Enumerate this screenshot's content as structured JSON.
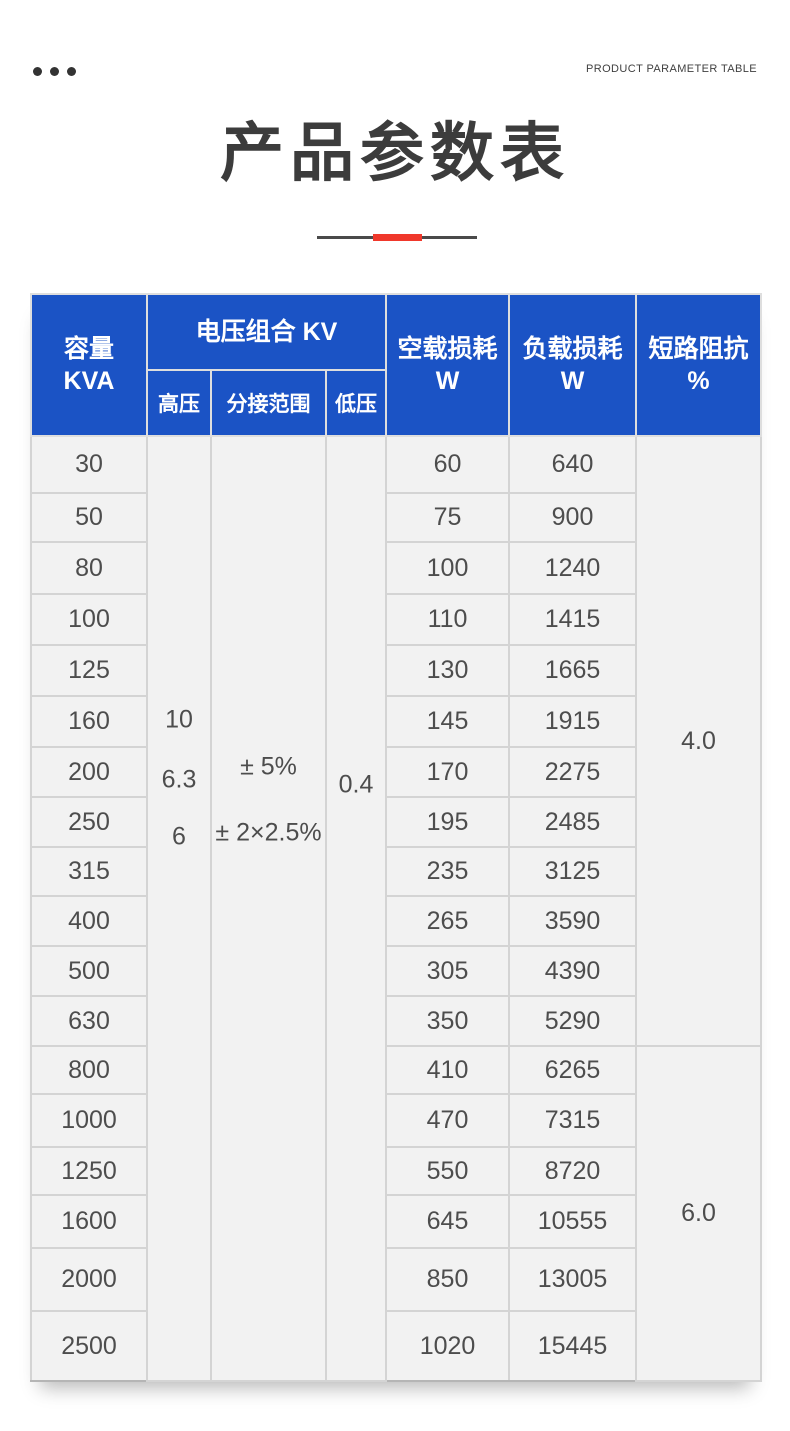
{
  "page": {
    "eyebrow": "PRODUCT PARAMETER TABLE",
    "title": "产品参数表"
  },
  "colors": {
    "header_blue": "#1b53c5",
    "accent_red": "#f0382b",
    "cell_bg": "#f2f2f2"
  },
  "table": {
    "header": {
      "capacity_title": "容量",
      "capacity_unit": "KVA",
      "voltage_group": "电压组合 KV",
      "high_voltage": "高压",
      "tap_range": "分接范围",
      "low_voltage": "低压",
      "no_load_loss": "空载损耗",
      "no_load_loss_unit": "W",
      "load_loss": "负载损耗",
      "load_loss_unit": "W",
      "impedance": "短路阻抗",
      "impedance_unit": "%"
    },
    "merged": {
      "high_voltage_values": [
        "10",
        "6.3",
        "6"
      ],
      "tap_range_values": [
        "± 5%",
        "± 2×2.5%"
      ],
      "low_voltage_value": "0.4",
      "impedance_values": [
        "4.0",
        "6.0"
      ],
      "impedance_row_spans": [
        12,
        6
      ]
    },
    "rows": [
      {
        "capacity": "30",
        "no_load_loss": "60",
        "load_loss": "640"
      },
      {
        "capacity": "50",
        "no_load_loss": "75",
        "load_loss": "900"
      },
      {
        "capacity": "80",
        "no_load_loss": "100",
        "load_loss": "1240"
      },
      {
        "capacity": "100",
        "no_load_loss": "110",
        "load_loss": "1415"
      },
      {
        "capacity": "125",
        "no_load_loss": "130",
        "load_loss": "1665"
      },
      {
        "capacity": "160",
        "no_load_loss": "145",
        "load_loss": "1915"
      },
      {
        "capacity": "200",
        "no_load_loss": "170",
        "load_loss": "2275"
      },
      {
        "capacity": "250",
        "no_load_loss": "195",
        "load_loss": "2485"
      },
      {
        "capacity": "315",
        "no_load_loss": "235",
        "load_loss": "3125"
      },
      {
        "capacity": "400",
        "no_load_loss": "265",
        "load_loss": "3590"
      },
      {
        "capacity": "500",
        "no_load_loss": "305",
        "load_loss": "4390"
      },
      {
        "capacity": "630",
        "no_load_loss": "350",
        "load_loss": "5290"
      },
      {
        "capacity": "800",
        "no_load_loss": "410",
        "load_loss": "6265"
      },
      {
        "capacity": "1000",
        "no_load_loss": "470",
        "load_loss": "7315"
      },
      {
        "capacity": "1250",
        "no_load_loss": "550",
        "load_loss": "8720"
      },
      {
        "capacity": "1600",
        "no_load_loss": "645",
        "load_loss": "10555"
      },
      {
        "capacity": "2000",
        "no_load_loss": "850",
        "load_loss": "13005"
      },
      {
        "capacity": "2500",
        "no_load_loss": "1020",
        "load_loss": "15445"
      }
    ]
  }
}
